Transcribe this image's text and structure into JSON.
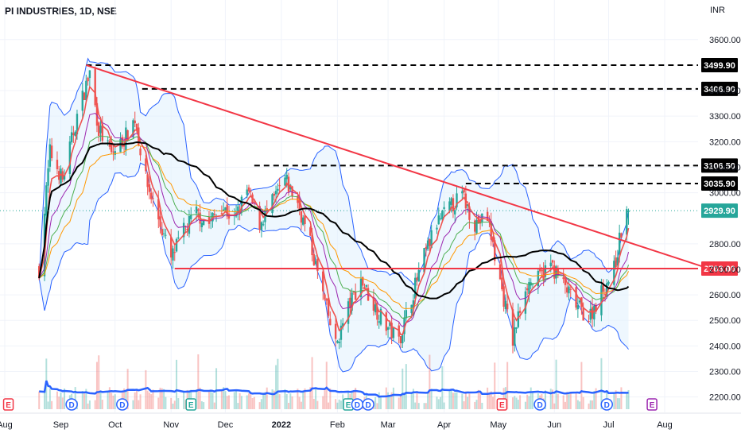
{
  "header": {
    "title": "PI INDUSTRIES, 1D, NSE",
    "currency": "INR"
  },
  "colors": {
    "up": "#26a69a",
    "down": "#ef5350",
    "trendline": "#f23645",
    "bollinger": "#2962ff",
    "band_fill": "#e3f2fd",
    "sma_long": "#000000",
    "ema_red": "#ef5350",
    "ema_orange": "#ff9800",
    "ema_green": "#4caf50",
    "ema_purple": "#9c27b0",
    "volume_ma": "#2962ff",
    "last_price": "#26a69a",
    "event_earnings": "#f23645",
    "event_dividend": "#2962ff",
    "event_split": "#26a69a",
    "event_future": "#9c27b0"
  },
  "chart_data": {
    "type": "candlestick",
    "title": "PI INDUSTRIES, 1D, NSE",
    "currency": "INR",
    "y_ticks": [
      2200,
      2300,
      2400,
      2500,
      2600,
      2700,
      2800,
      3000,
      3100,
      3200,
      3300,
      3400,
      3600
    ],
    "y_tick_labels": [
      "2200.00",
      "2300.00",
      "2400.00",
      "2500.00",
      "2600.00",
      "2700.00",
      "2800.00",
      "3000.00",
      "3100.00",
      "3200.00",
      "3300.00",
      "3400.00",
      "3600.00"
    ],
    "x_tick_labels": [
      "Aug",
      "Sep",
      "Oct",
      "Nov",
      "Dec",
      "2022",
      "Feb",
      "Mar",
      "Apr",
      "May",
      "Jun",
      "Jul",
      "Aug"
    ],
    "close_path": [
      [
        "2021-08-20",
        2700
      ],
      [
        "2021-08-26",
        3160
      ],
      [
        "2021-09-02",
        3050
      ],
      [
        "2021-09-10",
        3300
      ],
      [
        "2021-09-17",
        3470
      ],
      [
        "2021-09-22",
        3250
      ],
      [
        "2021-09-29",
        3150
      ],
      [
        "2021-10-06",
        3210
      ],
      [
        "2021-10-12",
        3290
      ],
      [
        "2021-10-18",
        3050
      ],
      [
        "2021-10-25",
        2900
      ],
      [
        "2021-11-01",
        2740
      ],
      [
        "2021-11-08",
        2850
      ],
      [
        "2021-11-15",
        2920
      ],
      [
        "2021-11-22",
        2880
      ],
      [
        "2021-11-29",
        2950
      ],
      [
        "2021-12-06",
        2890
      ],
      [
        "2021-12-13",
        3010
      ],
      [
        "2021-12-20",
        2880
      ],
      [
        "2021-12-27",
        2960
      ],
      [
        "2022-01-03",
        3050
      ],
      [
        "2022-01-10",
        2960
      ],
      [
        "2022-01-17",
        2800
      ],
      [
        "2022-01-24",
        2600
      ],
      [
        "2022-01-31",
        2400
      ],
      [
        "2022-02-07",
        2550
      ],
      [
        "2022-02-14",
        2660
      ],
      [
        "2022-02-21",
        2560
      ],
      [
        "2022-02-28",
        2480
      ],
      [
        "2022-03-07",
        2420
      ],
      [
        "2022-03-14",
        2590
      ],
      [
        "2022-03-21",
        2750
      ],
      [
        "2022-03-28",
        2880
      ],
      [
        "2022-04-04",
        2940
      ],
      [
        "2022-04-11",
        2990
      ],
      [
        "2022-04-18",
        2880
      ],
      [
        "2022-04-25",
        2900
      ],
      [
        "2022-05-02",
        2650
      ],
      [
        "2022-05-09",
        2420
      ],
      [
        "2022-05-16",
        2640
      ],
      [
        "2022-05-23",
        2660
      ],
      [
        "2022-05-30",
        2720
      ],
      [
        "2022-06-06",
        2640
      ],
      [
        "2022-06-13",
        2560
      ],
      [
        "2022-06-20",
        2510
      ],
      [
        "2022-06-27",
        2610
      ],
      [
        "2022-07-04",
        2700
      ],
      [
        "2022-07-08",
        2850
      ],
      [
        "2022-07-12",
        2930
      ]
    ],
    "levels": [
      {
        "label": "3499.90",
        "price": 3499.9,
        "start": "2021-09-15",
        "style": "dashed",
        "color": "#000000"
      },
      {
        "label": "3406.90",
        "price": 3406.9,
        "start": "2021-10-16",
        "style": "dashed",
        "color": "#000000"
      },
      {
        "label": "3106.50",
        "price": 3106.5,
        "start": "2021-12-17",
        "style": "dashed",
        "color": "#000000"
      },
      {
        "label": "3035.90",
        "price": 3035.9,
        "start": "2022-04-13",
        "style": "dashed",
        "color": "#000000"
      },
      {
        "label": "2703.00",
        "price": 2703.0,
        "start": "2021-11-03",
        "style": "solid",
        "color": "#f23645"
      }
    ],
    "trendline": {
      "from": [
        "2021-09-15",
        3500
      ],
      "to": [
        "2022-08-28",
        2697
      ]
    },
    "last_price": {
      "label": "2929.90",
      "price": 2929.9
    },
    "events": [
      {
        "letter": "E",
        "date": "2021-08-03",
        "kind": "earnings"
      },
      {
        "letter": "D",
        "date": "2021-09-07",
        "kind": "dividend"
      },
      {
        "letter": "D",
        "date": "2021-10-05",
        "kind": "dividend"
      },
      {
        "letter": "E",
        "date": "2021-11-12",
        "kind": "split"
      },
      {
        "letter": "E",
        "date": "2022-02-07",
        "kind": "split"
      },
      {
        "letter": "D",
        "date": "2022-02-12",
        "kind": "dividend"
      },
      {
        "letter": "D",
        "date": "2022-02-18",
        "kind": "dividend"
      },
      {
        "letter": "E",
        "date": "2022-05-03",
        "kind": "earnings"
      },
      {
        "letter": "D",
        "date": "2022-05-24",
        "kind": "dividend"
      },
      {
        "letter": "D",
        "date": "2022-06-30",
        "kind": "dividend"
      },
      {
        "letter": "E",
        "date": "2022-07-25",
        "kind": "future"
      }
    ],
    "grid": true,
    "indicators": [
      "Bollinger Bands",
      "SMA",
      "EMA",
      "Volume"
    ]
  }
}
